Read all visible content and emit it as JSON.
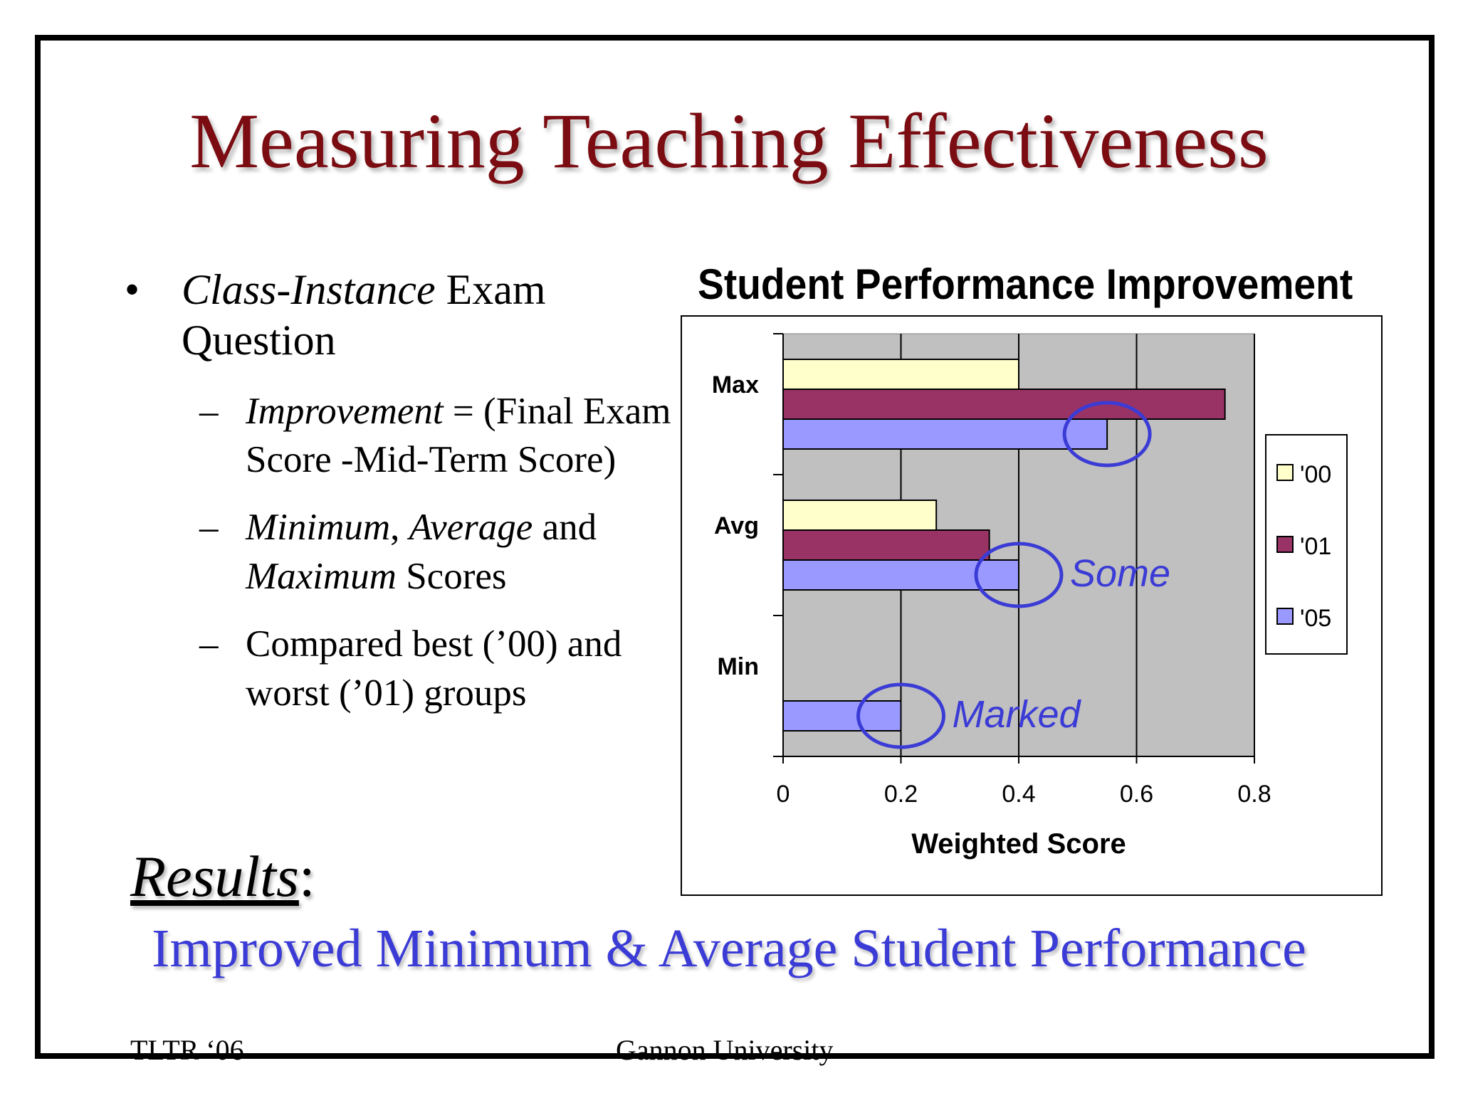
{
  "slide": {
    "title": "Measuring Teaching Effectiveness",
    "bullet": {
      "italic_part": "Class-Instance",
      "rest": " Exam Question",
      "subs": [
        {
          "italic": "Improvement",
          "rest": " = (Final Exam Score -Mid-Term Score)"
        },
        {
          "italic1": "Minimum",
          "sep": ", ",
          "italic2": "Average",
          "mid": " and ",
          "italic3": "Maximum",
          "rest": " Scores"
        },
        {
          "text": " Compared best (’00) and worst (’01) groups"
        }
      ]
    },
    "results_label": "Results",
    "results_colon": ":",
    "results_text": "Improved Minimum & Average Student Performance",
    "footer_left": "TLTR ‘06",
    "footer_center": "Gannon University"
  },
  "chart_data": {
    "type": "bar",
    "orientation": "horizontal",
    "title": "Student Performance Improvement",
    "categories": [
      "Max",
      "Avg",
      "Min"
    ],
    "series": [
      {
        "name": "'00",
        "color": "#ffffcc",
        "values": [
          0.4,
          0.26,
          0
        ]
      },
      {
        "name": "'01",
        "color": "#993366",
        "values": [
          0.75,
          0.35,
          0
        ]
      },
      {
        "name": "'05",
        "color": "#9999ff",
        "values": [
          0.55,
          0.4,
          0.2
        ]
      }
    ],
    "xlabel": "Weighted Score",
    "xlim": [
      0,
      0.8
    ],
    "xticks": [
      "0",
      "0.2",
      "0.4",
      "0.6",
      "0.8"
    ],
    "grid": true,
    "legend": "right",
    "plot_background": "#c0c0c0",
    "annotations": [
      {
        "text": "Some",
        "category": "Avg",
        "series": "'05"
      },
      {
        "text": "Marked",
        "category": "Min",
        "series": "'05"
      }
    ],
    "circle_targets": [
      {
        "category": "Max",
        "series": "'05"
      },
      {
        "category": "Avg",
        "series": "'05"
      },
      {
        "category": "Min",
        "series": "'05"
      }
    ],
    "annotation_color": "#3b3bd6"
  }
}
